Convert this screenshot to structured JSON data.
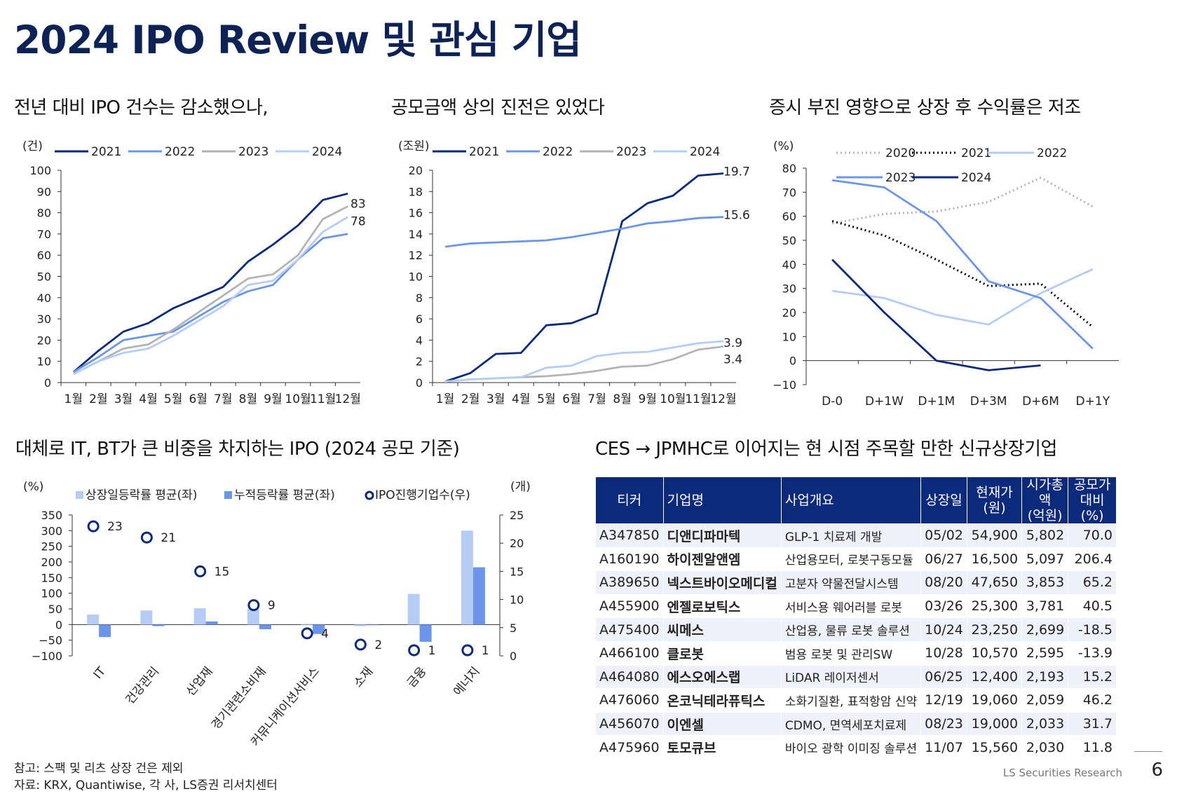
{
  "page": {
    "title": "2024 IPO Review 및 관심 기업",
    "subtitles": {
      "c1": "전년 대비 IPO 건수는 감소했으나,",
      "c2": "공모금액 상의 진전은 있었다",
      "c3": "증시 부진 영향으로 상장 후 수익률은 저조",
      "c4": "대체로 IT, BT가 큰 비중을 차지하는 IPO (2024 공모 기준)",
      "tbl": "CES → JPMHC로 이어지는 현 시점 주목할 만한 신규상장기업"
    },
    "notes": {
      "n1": "참고: 스팩 및 리츠 상장 건은 제외",
      "n2": "자료: KRX, Quantiwise, 각 사, LS증권 리서치센터"
    },
    "footer": {
      "brand": "LS Securities  Research",
      "page_no": "6"
    }
  },
  "colors": {
    "s2021": "#0b2a7c",
    "s2022": "#6b95e8",
    "s2023": "#b4b4b4",
    "s2024": "#b5cdf5",
    "s2020": "#b4b4b4",
    "bar_light": "#b5cdf5",
    "bar_dark": "#6b95e8",
    "header": "#0b2a7c"
  },
  "chart_data": [
    {
      "id": "ipo_count",
      "type": "line",
      "unit": "(건)",
      "categories": [
        "1월",
        "2월",
        "3월",
        "4월",
        "5월",
        "6월",
        "7월",
        "8월",
        "9월",
        "10월",
        "11월",
        "12월"
      ],
      "ylim": [
        0,
        100
      ],
      "yticks": [
        0,
        10,
        20,
        30,
        40,
        50,
        60,
        70,
        80,
        90,
        100
      ],
      "series": [
        {
          "name": "2021",
          "color": "#0b2a7c",
          "values": [
            5,
            15,
            24,
            28,
            35,
            40,
            45,
            57,
            65,
            74,
            86,
            89
          ]
        },
        {
          "name": "2022",
          "color": "#6b95e8",
          "values": [
            5,
            12,
            20,
            22,
            24,
            31,
            38,
            43,
            46,
            58,
            68,
            70
          ]
        },
        {
          "name": "2023",
          "color": "#b4b4b4",
          "values": [
            4,
            10,
            16,
            18,
            25,
            33,
            41,
            49,
            51,
            60,
            77,
            83
          ]
        },
        {
          "name": "2024",
          "color": "#b5cdf5",
          "values": [
            4,
            10,
            14,
            16,
            22,
            29,
            36,
            46,
            48,
            58,
            71,
            78
          ]
        }
      ],
      "end_labels": [
        "83",
        "78"
      ]
    },
    {
      "id": "ipo_amount",
      "type": "line",
      "unit": "(조원)",
      "categories": [
        "1월",
        "2월",
        "3월",
        "4월",
        "5월",
        "6월",
        "7월",
        "8월",
        "9월",
        "10월",
        "11월",
        "12월"
      ],
      "ylim": [
        0,
        20
      ],
      "yticks": [
        0,
        2,
        4,
        6,
        8,
        10,
        12,
        14,
        16,
        18,
        20
      ],
      "series": [
        {
          "name": "2021",
          "color": "#0b2a7c",
          "values": [
            0.1,
            0.9,
            2.7,
            2.8,
            5.4,
            5.6,
            6.5,
            15.2,
            16.9,
            17.6,
            19.5,
            19.7
          ]
        },
        {
          "name": "2022",
          "color": "#6b95e8",
          "values": [
            12.8,
            13.1,
            13.2,
            13.3,
            13.4,
            13.7,
            14.1,
            14.5,
            15.0,
            15.2,
            15.5,
            15.6
          ]
        },
        {
          "name": "2023",
          "color": "#b4b4b4",
          "values": [
            0.1,
            0.3,
            0.4,
            0.5,
            0.6,
            0.8,
            1.1,
            1.5,
            1.6,
            2.2,
            3.1,
            3.4
          ]
        },
        {
          "name": "2024",
          "color": "#b5cdf5",
          "values": [
            0.1,
            0.3,
            0.4,
            0.5,
            1.4,
            1.6,
            2.5,
            2.8,
            2.9,
            3.3,
            3.7,
            3.9
          ]
        }
      ],
      "end_labels": [
        "19.7",
        "15.6",
        "3.9",
        "3.4"
      ]
    },
    {
      "id": "post_ipo_return",
      "type": "line",
      "unit": "(%)",
      "categories": [
        "D-0",
        "D+1W",
        "D+1M",
        "D+3M",
        "D+6M",
        "D+1Y"
      ],
      "ylim": [
        -10,
        80
      ],
      "yticks": [
        -10,
        0,
        10,
        20,
        30,
        40,
        50,
        60,
        70,
        80
      ],
      "series": [
        {
          "name": "2020",
          "color": "#b4b4b4",
          "style": "dotted",
          "values": [
            57,
            61,
            62,
            66,
            76,
            64
          ]
        },
        {
          "name": "2021",
          "color": "#000000",
          "style": "dotted",
          "values": [
            58,
            52,
            42,
            31,
            32,
            14
          ]
        },
        {
          "name": "2022",
          "color": "#b5cdf5",
          "style": "solid",
          "values": [
            29,
            26,
            19,
            15,
            28,
            38
          ]
        },
        {
          "name": "2023",
          "color": "#6b95e8",
          "style": "solid",
          "values": [
            75,
            72,
            58,
            33,
            26,
            5
          ]
        },
        {
          "name": "2024",
          "color": "#0b2a7c",
          "style": "solid",
          "values": [
            42,
            20,
            0,
            -4,
            -2,
            null
          ]
        }
      ]
    },
    {
      "id": "sector_ipo",
      "type": "bar",
      "categories": [
        "IT",
        "건강관리",
        "산업재",
        "경기관련소비재",
        "커뮤니케이션서비스",
        "소재",
        "금융",
        "에너지"
      ],
      "left_unit": "(%)",
      "right_unit": "(개)",
      "ylim_left": [
        -100,
        350
      ],
      "yticks_left": [
        -100,
        -50,
        0,
        50,
        100,
        150,
        200,
        250,
        300,
        350
      ],
      "ylim_right": [
        0,
        25
      ],
      "yticks_right": [
        0,
        5,
        10,
        15,
        20,
        25
      ],
      "series": [
        {
          "name": "상장일등락률 평균(좌)",
          "color": "#b5cdf5",
          "axis": "left",
          "values": [
            32,
            45,
            52,
            50,
            -2,
            -5,
            98,
            300
          ]
        },
        {
          "name": "누적등락률 평균(좌)",
          "color": "#6b95e8",
          "axis": "left",
          "values": [
            -40,
            -5,
            10,
            -15,
            -30,
            -2,
            -55,
            183
          ]
        },
        {
          "name": "IPO진행기업수(우)",
          "color": "#0b2a7c",
          "axis": "right",
          "marker": "circle",
          "values": [
            23,
            21,
            15,
            9,
            4,
            2,
            1,
            1
          ]
        }
      ]
    }
  ],
  "table": {
    "headers": [
      "티커",
      "기업명",
      "사업개요",
      "상장일",
      "현재가\n(원)",
      "시가총액\n(억원)",
      "공모가대비\n(%)"
    ],
    "rows": [
      [
        "A347850",
        "디앤디파마텍",
        "GLP-1 치료제 개발",
        "05/02",
        "54,900",
        "5,802",
        "70.0"
      ],
      [
        "A160190",
        "하이젠알앤엠",
        "산업용모터, 로봇구동모듈",
        "06/27",
        "16,500",
        "5,097",
        "206.4"
      ],
      [
        "A389650",
        "넥스트바이오메디컬",
        "고분자 약물전달시스템",
        "08/20",
        "47,650",
        "3,853",
        "65.2"
      ],
      [
        "A455900",
        "엔젤로보틱스",
        "서비스용 웨어러블 로봇",
        "03/26",
        "25,300",
        "3,781",
        "40.5"
      ],
      [
        "A475400",
        "씨메스",
        "산업용, 물류 로봇 솔루션",
        "10/24",
        "23,250",
        "2,699",
        "-18.5"
      ],
      [
        "A466100",
        "클로봇",
        "범용 로봇 및 관리SW",
        "10/28",
        "10,570",
        "2,595",
        "-13.9"
      ],
      [
        "A464080",
        "에스오에스랩",
        "LiDAR 레이저센서",
        "06/25",
        "12,400",
        "2,193",
        "15.2"
      ],
      [
        "A476060",
        "온코닉테라퓨틱스",
        "소화기질환, 표적항암 신약",
        "12/19",
        "19,060",
        "2,059",
        "46.2"
      ],
      [
        "A456070",
        "이엔셀",
        "CDMO, 면역세포치료제",
        "08/23",
        "19,000",
        "2,033",
        "31.7"
      ],
      [
        "A475960",
        "토모큐브",
        "바이오 광학 이미징 솔루션",
        "11/07",
        "15,560",
        "2,030",
        "11.8"
      ]
    ]
  }
}
